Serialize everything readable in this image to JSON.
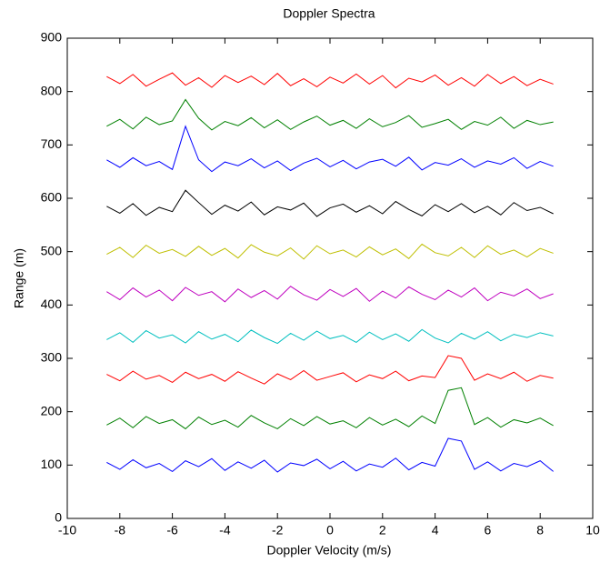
{
  "chart_data": {
    "type": "line",
    "title": "Doppler Spectra",
    "xlabel": "Doppler Velocity (m/s)",
    "ylabel": "Range (m)",
    "x": [
      -8.5,
      -8,
      -7.5,
      -7,
      -6.5,
      -6,
      -5.5,
      -5,
      -4.5,
      -4,
      -3.5,
      -3,
      -2.5,
      -2,
      -1.5,
      -1,
      -0.5,
      0,
      0.5,
      1,
      1.5,
      2,
      2.5,
      3,
      3.5,
      4,
      4.5,
      5,
      5.5,
      6,
      6.5,
      7,
      7.5,
      8,
      8.5
    ],
    "series": [
      {
        "color": "#ff0000",
        "values": [
          828,
          815,
          832,
          810,
          823,
          835,
          812,
          826,
          808,
          830,
          817,
          829,
          813,
          834,
          811,
          824,
          809,
          827,
          816,
          833,
          814,
          830,
          807,
          825,
          818,
          831,
          812,
          826,
          810,
          832,
          815,
          828,
          811,
          823,
          814
        ]
      },
      {
        "color": "#008000",
        "values": [
          735,
          748,
          730,
          752,
          738,
          745,
          785,
          750,
          728,
          744,
          736,
          751,
          732,
          747,
          729,
          743,
          754,
          737,
          746,
          731,
          749,
          734,
          742,
          755,
          733,
          740,
          748,
          729,
          744,
          737,
          752,
          731,
          746,
          738,
          743
        ]
      },
      {
        "color": "#0000ff",
        "values": [
          672,
          658,
          676,
          661,
          669,
          654,
          735,
          672,
          650,
          668,
          661,
          674,
          657,
          670,
          652,
          666,
          675,
          659,
          671,
          655,
          668,
          673,
          660,
          677,
          653,
          667,
          662,
          674,
          658,
          670,
          664,
          676,
          656,
          669,
          660
        ]
      },
      {
        "color": "#000000",
        "values": [
          585,
          572,
          590,
          568,
          583,
          575,
          615,
          592,
          570,
          587,
          576,
          593,
          569,
          584,
          578,
          591,
          566,
          582,
          589,
          574,
          586,
          571,
          594,
          579,
          567,
          588,
          575,
          590,
          573,
          585,
          569,
          592,
          577,
          583,
          571
        ]
      },
      {
        "color": "#bfbf00",
        "values": [
          495,
          508,
          489,
          512,
          497,
          504,
          491,
          510,
          493,
          506,
          488,
          513,
          499,
          492,
          507,
          486,
          511,
          496,
          503,
          490,
          509,
          494,
          505,
          487,
          514,
          498,
          492,
          508,
          489,
          511,
          495,
          503,
          490,
          506,
          497
        ]
      },
      {
        "color": "#bf00bf",
        "values": [
          425,
          410,
          432,
          415,
          428,
          408,
          433,
          418,
          425,
          406,
          430,
          414,
          427,
          411,
          435,
          419,
          409,
          429,
          416,
          431,
          407,
          426,
          413,
          434,
          420,
          410,
          428,
          415,
          432,
          408,
          424,
          417,
          430,
          412,
          421
        ]
      },
      {
        "color": "#00bfbf",
        "values": [
          335,
          348,
          330,
          352,
          338,
          344,
          329,
          350,
          336,
          345,
          331,
          353,
          339,
          328,
          347,
          334,
          351,
          337,
          343,
          330,
          349,
          335,
          346,
          332,
          354,
          338,
          329,
          347,
          336,
          350,
          333,
          345,
          339,
          348,
          342
        ]
      },
      {
        "color": "#ff0000",
        "values": [
          270,
          258,
          276,
          261,
          268,
          255,
          274,
          262,
          270,
          257,
          275,
          263,
          252,
          271,
          260,
          277,
          259,
          266,
          273,
          256,
          269,
          262,
          276,
          258,
          267,
          264,
          305,
          300,
          259,
          271,
          262,
          274,
          257,
          268,
          263
        ]
      },
      {
        "color": "#008000",
        "values": [
          175,
          188,
          170,
          191,
          178,
          185,
          168,
          190,
          176,
          184,
          171,
          193,
          179,
          168,
          187,
          174,
          191,
          177,
          183,
          170,
          189,
          175,
          186,
          172,
          192,
          178,
          240,
          245,
          176,
          189,
          171,
          185,
          179,
          188,
          174
        ]
      },
      {
        "color": "#0000ff",
        "values": [
          105,
          92,
          110,
          95,
          103,
          88,
          108,
          97,
          112,
          90,
          106,
          94,
          109,
          87,
          104,
          99,
          111,
          93,
          107,
          89,
          102,
          96,
          113,
          91,
          105,
          98,
          150,
          145,
          92,
          106,
          89,
          103,
          97,
          108,
          88
        ]
      }
    ],
    "xlim": [
      -10,
      10
    ],
    "xticks": [
      -10,
      -8,
      -6,
      -4,
      -2,
      0,
      2,
      4,
      6,
      8,
      10
    ],
    "ylim": [
      0,
      900
    ],
    "yticks": [
      0,
      100,
      200,
      300,
      400,
      500,
      600,
      700,
      800,
      900
    ],
    "grid": false
  }
}
